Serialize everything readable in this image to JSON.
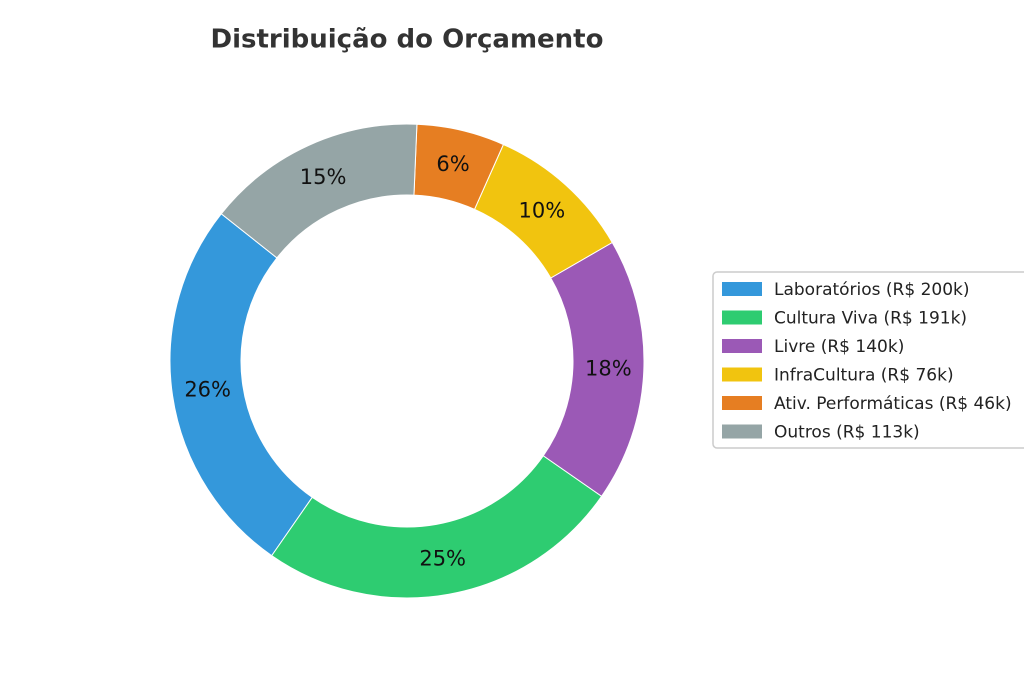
{
  "chart_data": {
    "type": "donut",
    "title": "Distribuição do Orçamento",
    "series": [
      {
        "name": "Laboratórios (R$ 200k)",
        "color": "#3498db"
      },
      {
        "name": "Cultura Viva (R$ 191k)",
        "color": "#2ecc71"
      },
      {
        "name": "Livre (R$ 140k)",
        "color": "#9b59b6"
      },
      {
        "name": "InfraCultura (R$ 76k)",
        "color": "#f1c40f"
      },
      {
        "name": "Ativ. Performáticas (R$ 46k)",
        "color": "#e67e22"
      },
      {
        "name": "Outros (R$ 113k)",
        "color": "#95a5a6"
      }
    ],
    "values": [
      26,
      25,
      18,
      10,
      6,
      15
    ],
    "value_labels": [
      "26%",
      "25%",
      "18%",
      "10%",
      "6%",
      "15%"
    ],
    "legend": "right"
  }
}
